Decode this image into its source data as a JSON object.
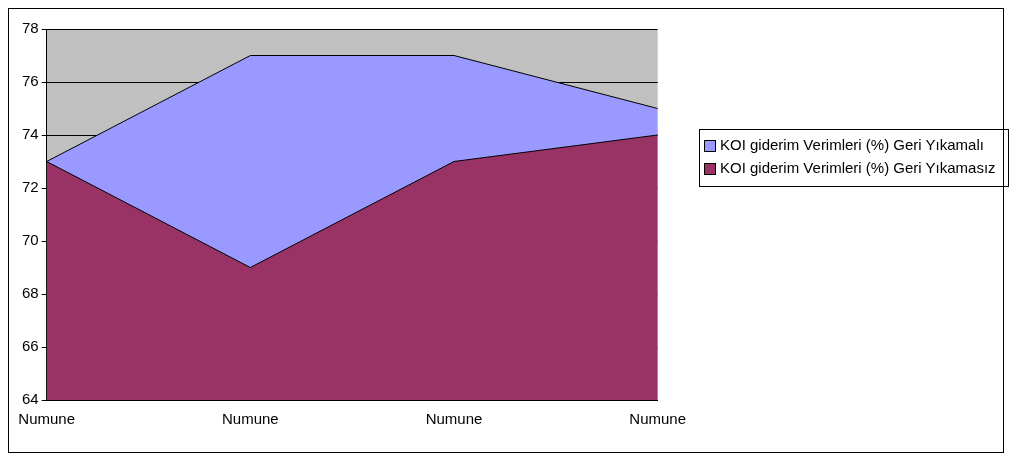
{
  "chart_data": {
    "type": "area",
    "categories": [
      "Numune",
      "Numune",
      "Numune",
      "Numune"
    ],
    "series": [
      {
        "name": "KOI giderim Verimleri (%) Geri Yıkamalı",
        "color": "#9999ff",
        "values": [
          73,
          77,
          77,
          75
        ]
      },
      {
        "name": "KOI giderim Verimleri (%) Geri Yıkamasız",
        "color": "#993366",
        "values": [
          73,
          69,
          73,
          74
        ]
      }
    ],
    "ylim": [
      64,
      78
    ],
    "yticks": [
      64,
      66,
      68,
      70,
      72,
      74,
      76,
      78
    ],
    "grid": "y",
    "legend": "right"
  }
}
